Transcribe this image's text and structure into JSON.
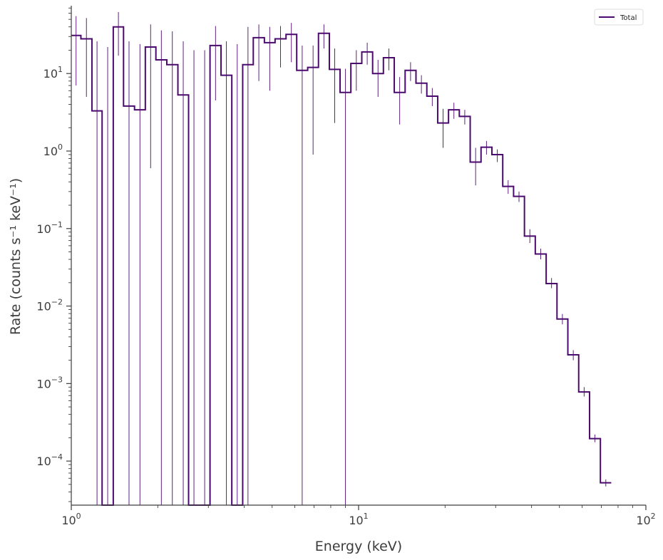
{
  "chart_data": {
    "type": "line",
    "xscale": "log",
    "yscale": "log",
    "xlabel": "Energy (keV)",
    "ylabel": "Rate (counts s⁻¹ keV⁻¹)",
    "xlim": [
      1,
      100
    ],
    "ylim": [
      2.7e-05,
      75
    ],
    "xticks": [
      {
        "value": 1,
        "base": "10",
        "exp": "0"
      },
      {
        "value": 10,
        "base": "10",
        "exp": "1"
      },
      {
        "value": 100,
        "base": "10",
        "exp": "2"
      }
    ],
    "yticks": [
      {
        "value": 10,
        "base": "10",
        "exp": "1"
      },
      {
        "value": 1,
        "base": "10",
        "exp": "0"
      },
      {
        "value": 0.1,
        "base": "10",
        "exp": "−1"
      },
      {
        "value": 0.01,
        "base": "10",
        "exp": "−2"
      },
      {
        "value": 0.001,
        "base": "10",
        "exp": "−3"
      },
      {
        "value": 0.0001,
        "base": "10",
        "exp": "−4"
      }
    ],
    "grid": false,
    "legend_position": "top-right",
    "color": "#4b0a6e",
    "series": [
      {
        "name": "Total",
        "style": "step",
        "bins": [
          {
            "lo": 1.0,
            "hi": 1.08,
            "y": 31,
            "ylo": 7,
            "yhi": 55
          },
          {
            "lo": 1.08,
            "hi": 1.18,
            "y": 28,
            "ylo": 5,
            "yhi": 52
          },
          {
            "lo": 1.18,
            "hi": 1.28,
            "y": 3.3,
            "ylo": null,
            "yhi": 26
          },
          {
            "lo": 1.28,
            "hi": 1.4,
            "y": null,
            "ylo": null,
            "yhi": 22
          },
          {
            "lo": 1.4,
            "hi": 1.52,
            "y": 40,
            "ylo": 17,
            "yhi": 62
          },
          {
            "lo": 1.52,
            "hi": 1.66,
            "y": 3.8,
            "ylo": null,
            "yhi": 26
          },
          {
            "lo": 1.66,
            "hi": 1.81,
            "y": 3.4,
            "ylo": null,
            "yhi": 24
          },
          {
            "lo": 1.81,
            "hi": 1.97,
            "y": 22,
            "ylo": 0.6,
            "yhi": 43
          },
          {
            "lo": 1.97,
            "hi": 2.15,
            "y": 15,
            "ylo": null,
            "yhi": 36
          },
          {
            "lo": 2.15,
            "hi": 2.35,
            "y": 13,
            "ylo": null,
            "yhi": 35
          },
          {
            "lo": 2.35,
            "hi": 2.56,
            "y": 5.3,
            "ylo": null,
            "yhi": 26
          },
          {
            "lo": 2.56,
            "hi": 2.79,
            "y": null,
            "ylo": null,
            "yhi": 20
          },
          {
            "lo": 2.79,
            "hi": 3.04,
            "y": null,
            "ylo": null,
            "yhi": 20
          },
          {
            "lo": 3.04,
            "hi": 3.32,
            "y": 23,
            "ylo": 4.5,
            "yhi": 41
          },
          {
            "lo": 3.32,
            "hi": 3.62,
            "y": 9.5,
            "ylo": null,
            "yhi": 26
          },
          {
            "lo": 3.62,
            "hi": 3.95,
            "y": null,
            "ylo": null,
            "yhi": 24
          },
          {
            "lo": 3.95,
            "hi": 4.3,
            "y": 13,
            "ylo": null,
            "yhi": 40
          },
          {
            "lo": 4.3,
            "hi": 4.7,
            "y": 29,
            "ylo": 8,
            "yhi": 43
          },
          {
            "lo": 4.7,
            "hi": 5.12,
            "y": 25,
            "ylo": 6,
            "yhi": 40
          },
          {
            "lo": 5.12,
            "hi": 5.59,
            "y": 28,
            "ylo": 12,
            "yhi": 41
          },
          {
            "lo": 5.59,
            "hi": 6.09,
            "y": 32,
            "ylo": 14,
            "yhi": 45
          },
          {
            "lo": 6.09,
            "hi": 6.65,
            "y": 11,
            "ylo": null,
            "yhi": 23
          },
          {
            "lo": 6.65,
            "hi": 7.25,
            "y": 12,
            "ylo": 0.9,
            "yhi": 23
          },
          {
            "lo": 7.25,
            "hi": 7.91,
            "y": 33,
            "ylo": 21,
            "yhi": 43
          },
          {
            "lo": 7.91,
            "hi": 8.62,
            "y": 11.3,
            "ylo": 2.3,
            "yhi": 21
          },
          {
            "lo": 8.62,
            "hi": 9.4,
            "y": 5.7,
            "ylo": null,
            "yhi": 11.5
          },
          {
            "lo": 9.4,
            "hi": 10.26,
            "y": 13.5,
            "ylo": 6,
            "yhi": 20
          },
          {
            "lo": 10.26,
            "hi": 11.19,
            "y": 19,
            "ylo": 13,
            "yhi": 25
          },
          {
            "lo": 11.19,
            "hi": 12.2,
            "y": 10,
            "ylo": 5,
            "yhi": 15
          },
          {
            "lo": 12.2,
            "hi": 13.31,
            "y": 16,
            "ylo": 11,
            "yhi": 21
          },
          {
            "lo": 13.31,
            "hi": 14.52,
            "y": 5.7,
            "ylo": 2.2,
            "yhi": 9
          },
          {
            "lo": 14.52,
            "hi": 15.84,
            "y": 11,
            "ylo": 8,
            "yhi": 14
          },
          {
            "lo": 15.84,
            "hi": 17.28,
            "y": 7.5,
            "ylo": 5.5,
            "yhi": 9.5
          },
          {
            "lo": 17.28,
            "hi": 18.85,
            "y": 5.1,
            "ylo": 3.8,
            "yhi": 6.5
          },
          {
            "lo": 18.85,
            "hi": 20.56,
            "y": 2.3,
            "ylo": 1.1,
            "yhi": 3.5
          },
          {
            "lo": 20.56,
            "hi": 22.42,
            "y": 3.4,
            "ylo": 2.6,
            "yhi": 4.2
          },
          {
            "lo": 22.42,
            "hi": 24.46,
            "y": 2.8,
            "ylo": 2.2,
            "yhi": 3.4
          },
          {
            "lo": 24.46,
            "hi": 26.68,
            "y": 0.72,
            "ylo": 0.36,
            "yhi": 1.1
          },
          {
            "lo": 26.68,
            "hi": 29.11,
            "y": 1.12,
            "ylo": 0.9,
            "yhi": 1.35
          },
          {
            "lo": 29.11,
            "hi": 31.75,
            "y": 0.9,
            "ylo": 0.72,
            "yhi": 1.05
          },
          {
            "lo": 31.75,
            "hi": 34.63,
            "y": 0.35,
            "ylo": 0.28,
            "yhi": 0.42
          },
          {
            "lo": 34.63,
            "hi": 37.78,
            "y": 0.26,
            "ylo": 0.22,
            "yhi": 0.3
          },
          {
            "lo": 37.78,
            "hi": 41.21,
            "y": 0.08,
            "ylo": 0.065,
            "yhi": 0.098
          },
          {
            "lo": 41.21,
            "hi": 44.96,
            "y": 0.047,
            "ylo": 0.04,
            "yhi": 0.055
          },
          {
            "lo": 44.96,
            "hi": 49.04,
            "y": 0.0195,
            "ylo": 0.017,
            "yhi": 0.023
          },
          {
            "lo": 49.04,
            "hi": 53.5,
            "y": 0.0068,
            "ylo": 0.0058,
            "yhi": 0.0079
          },
          {
            "lo": 53.5,
            "hi": 58.36,
            "y": 0.00235,
            "ylo": 0.002,
            "yhi": 0.0027
          },
          {
            "lo": 58.36,
            "hi": 63.66,
            "y": 0.00078,
            "ylo": 0.00068,
            "yhi": 0.0009
          },
          {
            "lo": 63.66,
            "hi": 69.45,
            "y": 0.000195,
            "ylo": 0.000175,
            "yhi": 0.00022
          },
          {
            "lo": 69.45,
            "hi": 75.76,
            "y": 5.25e-05,
            "ylo": 4.7e-05,
            "yhi": 5.8e-05
          }
        ]
      }
    ]
  }
}
